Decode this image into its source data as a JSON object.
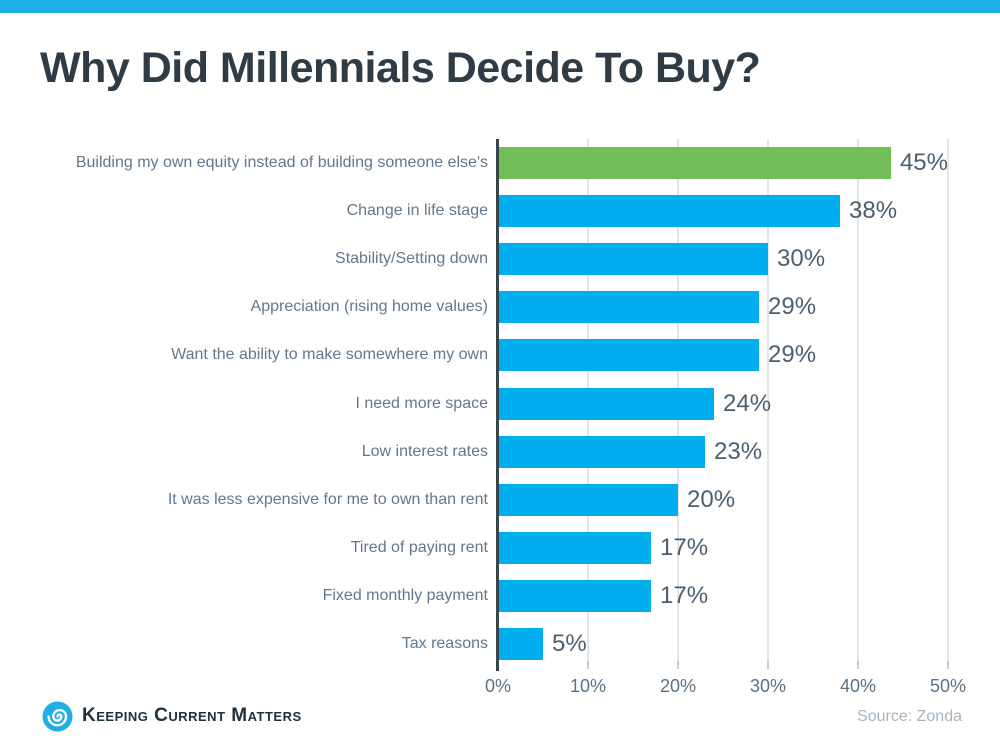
{
  "title": "Why Did Millennials Decide To Buy?",
  "colors": {
    "top_bar": "#1FAEE5",
    "bar_blue": "#00AEEF",
    "bar_green": "#72BF58",
    "logo_blue": "#1FAEE5"
  },
  "chart_data": {
    "type": "bar",
    "orientation": "horizontal",
    "title": "Why Did Millennials Decide To Buy?",
    "categories": [
      "Building my own equity instead of building someone else's",
      "Change in life stage",
      "Stability/Setting down",
      "Appreciation (rising home values)",
      "Want the ability to make somewhere my own",
      "I need more space",
      "Low interest rates",
      "It was less expensive for me to own than rent",
      "Tired of paying rent",
      "Fixed monthly payment",
      "Tax reasons"
    ],
    "values": [
      45,
      38,
      30,
      29,
      29,
      24,
      23,
      20,
      17,
      17,
      5
    ],
    "value_labels": [
      "45%",
      "38%",
      "30%",
      "29%",
      "29%",
      "24%",
      "23%",
      "20%",
      "17%",
      "17%",
      "5%"
    ],
    "highlight_index": 0,
    "bar_color": "#00AEEF",
    "highlight_color": "#72BF58",
    "xlim": [
      0,
      50
    ],
    "x_ticks": [
      "0%",
      "10%",
      "20%",
      "30%",
      "40%",
      "50%"
    ],
    "grid": true,
    "legend": false
  },
  "footer": {
    "brand": "Keeping Current Matters",
    "source": "Source: Zonda"
  }
}
